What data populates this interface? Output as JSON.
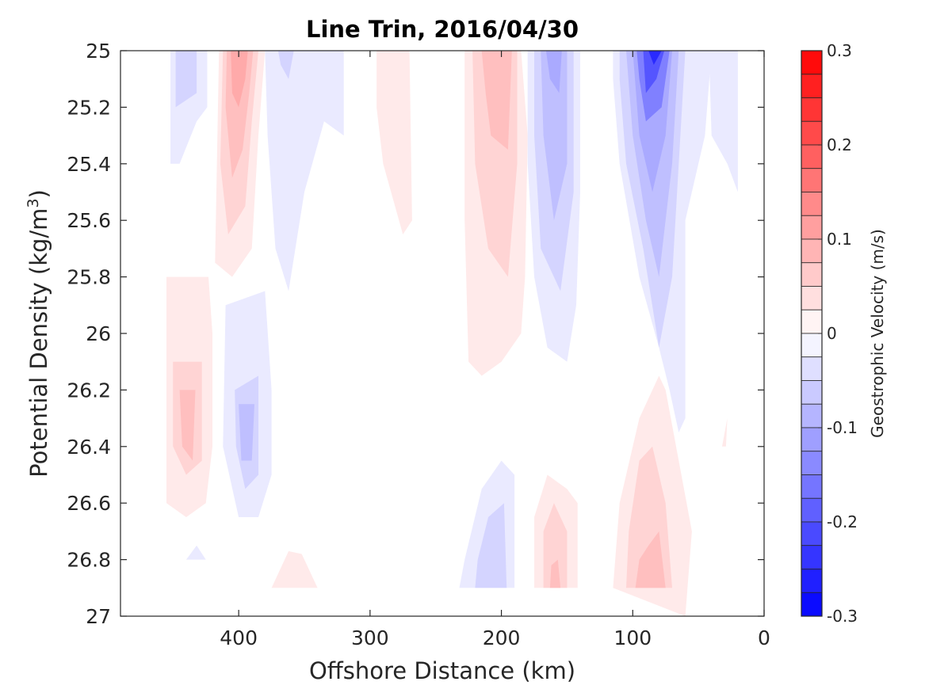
{
  "chart_data": {
    "type": "contour",
    "title": "Line Trin, 2016/04/30",
    "xlabel": "Offshore Distance (km)",
    "ylabel": "Potential Density (kg/m",
    "ylabel_sup": "3",
    "ylabel_close": ")",
    "xlim": [
      490,
      0
    ],
    "ylim": [
      25,
      27
    ],
    "x_ticks": [
      400,
      300,
      200,
      100,
      0
    ],
    "x_tick_labels": [
      "400",
      "300",
      "200",
      "100",
      "0"
    ],
    "y_ticks": [
      25,
      25.2,
      25.4,
      25.6,
      25.8,
      26,
      26.2,
      26.4,
      26.6,
      26.8,
      27
    ],
    "y_tick_labels": [
      "25",
      "25.2",
      "25.4",
      "25.6",
      "25.8",
      "26",
      "26.2",
      "26.4",
      "26.6",
      "26.8",
      "27"
    ],
    "colorbar": {
      "label": "Geostrophic Velocity (m/s)",
      "range": [
        -0.3,
        0.3
      ],
      "step": 0.025,
      "ticks": [
        0.3,
        0.2,
        0.1,
        0,
        -0.1,
        -0.2,
        -0.3
      ],
      "tick_labels": [
        "0.3",
        "0.2",
        "0.1",
        "0",
        "-0.1",
        "-0.2",
        "-0.3"
      ],
      "colormap": "blue-white-red",
      "neg_color": "#0000ff",
      "pos_color": "#ff0000"
    },
    "grid": false,
    "contour_regions": [
      {
        "feature": "blue jet near 440 km",
        "level": -0.025,
        "points": [
          [
            452,
            25
          ],
          [
            424,
            25
          ],
          [
            424,
            25.2
          ],
          [
            432,
            25.25
          ],
          [
            445,
            25.4
          ],
          [
            452,
            25.4
          ]
        ]
      },
      {
        "feature": "blue jet near 440 km",
        "level": -0.05,
        "points": [
          [
            448,
            25
          ],
          [
            432,
            25
          ],
          [
            432,
            25.15
          ],
          [
            448,
            25.2
          ]
        ]
      },
      {
        "feature": "red jet near 400 km",
        "level": 0.025,
        "points": [
          [
            415,
            25
          ],
          [
            380,
            25
          ],
          [
            385,
            25.3
          ],
          [
            390,
            25.7
          ],
          [
            405,
            25.8
          ],
          [
            418,
            25.75
          ]
        ]
      },
      {
        "feature": "red jet near 400 km",
        "level": 0.05,
        "points": [
          [
            412,
            25
          ],
          [
            385,
            25
          ],
          [
            390,
            25.25
          ],
          [
            395,
            25.55
          ],
          [
            408,
            25.65
          ],
          [
            414,
            25.4
          ]
        ]
      },
      {
        "feature": "red jet near 400 km",
        "level": 0.075,
        "points": [
          [
            409,
            25
          ],
          [
            389,
            25
          ],
          [
            392,
            25.15
          ],
          [
            397,
            25.35
          ],
          [
            405,
            25.45
          ],
          [
            410,
            25.2
          ]
        ]
      },
      {
        "feature": "red jet near 400 km",
        "level": 0.1,
        "points": [
          [
            406,
            25
          ],
          [
            393,
            25
          ],
          [
            395,
            25.1
          ],
          [
            400,
            25.2
          ],
          [
            405,
            25.15
          ]
        ]
      },
      {
        "feature": "blue band 330-380 km",
        "level": -0.025,
        "points": [
          [
            380,
            25
          ],
          [
            320,
            25
          ],
          [
            320,
            25.3
          ],
          [
            335,
            25.25
          ],
          [
            350,
            25.5
          ],
          [
            362,
            25.85
          ],
          [
            372,
            25.7
          ],
          [
            378,
            25.3
          ]
        ]
      },
      {
        "feature": "blue band 330-380 km",
        "level": -0.05,
        "points": [
          [
            370,
            25
          ],
          [
            358,
            25
          ],
          [
            362,
            25.1
          ],
          [
            368,
            25.05
          ]
        ]
      },
      {
        "feature": "red band near 280 km",
        "level": 0.025,
        "points": [
          [
            295,
            25
          ],
          [
            270,
            25
          ],
          [
            268,
            25.6
          ],
          [
            275,
            25.65
          ],
          [
            290,
            25.4
          ],
          [
            295,
            25.2
          ]
        ]
      },
      {
        "feature": "red jet near 200 km",
        "level": 0.025,
        "points": [
          [
            228,
            25
          ],
          [
            185,
            25
          ],
          [
            180,
            25.3
          ],
          [
            182,
            25.8
          ],
          [
            185,
            26
          ],
          [
            200,
            26.1
          ],
          [
            215,
            26.15
          ],
          [
            225,
            26.1
          ],
          [
            228,
            25.6
          ]
        ]
      },
      {
        "feature": "red jet near 200 km",
        "level": 0.05,
        "points": [
          [
            222,
            25
          ],
          [
            188,
            25
          ],
          [
            188,
            25.4
          ],
          [
            195,
            25.8
          ],
          [
            210,
            25.7
          ],
          [
            220,
            25.4
          ]
        ]
      },
      {
        "feature": "red jet near 200 km",
        "level": 0.075,
        "points": [
          [
            215,
            25
          ],
          [
            192,
            25
          ],
          [
            195,
            25.35
          ],
          [
            208,
            25.3
          ],
          [
            212,
            25.15
          ]
        ]
      },
      {
        "feature": "blue jet near 160 km",
        "level": -0.025,
        "points": [
          [
            180,
            25
          ],
          [
            140,
            25
          ],
          [
            140,
            25.5
          ],
          [
            143,
            25.9
          ],
          [
            150,
            26.1
          ],
          [
            165,
            26.05
          ],
          [
            175,
            25.8
          ],
          [
            180,
            25.4
          ]
        ]
      },
      {
        "feature": "blue jet near 160 km",
        "level": -0.05,
        "points": [
          [
            175,
            25
          ],
          [
            145,
            25
          ],
          [
            145,
            25.5
          ],
          [
            155,
            25.85
          ],
          [
            170,
            25.7
          ],
          [
            175,
            25.3
          ]
        ]
      },
      {
        "feature": "blue jet near 160 km",
        "level": -0.075,
        "points": [
          [
            170,
            25
          ],
          [
            150,
            25
          ],
          [
            150,
            25.4
          ],
          [
            160,
            25.6
          ],
          [
            168,
            25.3
          ]
        ]
      },
      {
        "feature": "blue jet near 160 km",
        "level": -0.1,
        "points": [
          [
            166,
            25
          ],
          [
            154,
            25
          ],
          [
            156,
            25.15
          ],
          [
            163,
            25.1
          ]
        ]
      },
      {
        "feature": "blue jet 70-115 km",
        "level": -0.025,
        "points": [
          [
            115,
            25
          ],
          [
            40,
            25
          ],
          [
            45,
            25.3
          ],
          [
            60,
            25.6
          ],
          [
            60,
            26.3
          ],
          [
            65,
            26.35
          ],
          [
            72,
            26.2
          ],
          [
            80,
            26.05
          ],
          [
            95,
            25.8
          ],
          [
            110,
            25.4
          ],
          [
            115,
            25.1
          ]
        ]
      },
      {
        "feature": "blue jet 70-115 km",
        "level": -0.05,
        "points": [
          [
            110,
            25
          ],
          [
            60,
            25
          ],
          [
            65,
            25.4
          ],
          [
            70,
            25.8
          ],
          [
            80,
            26.05
          ],
          [
            92,
            25.7
          ],
          [
            105,
            25.4
          ],
          [
            110,
            25.1
          ]
        ]
      },
      {
        "feature": "blue jet 70-115 km",
        "level": -0.075,
        "points": [
          [
            105,
            25
          ],
          [
            65,
            25
          ],
          [
            70,
            25.4
          ],
          [
            80,
            25.8
          ],
          [
            90,
            25.6
          ],
          [
            100,
            25.3
          ]
        ]
      },
      {
        "feature": "blue jet 70-115 km",
        "level": -0.1,
        "points": [
          [
            100,
            25
          ],
          [
            70,
            25
          ],
          [
            75,
            25.3
          ],
          [
            85,
            25.5
          ],
          [
            95,
            25.3
          ]
        ]
      },
      {
        "feature": "blue jet 70-115 km",
        "level": -0.15,
        "points": [
          [
            97,
            25
          ],
          [
            72,
            25
          ],
          [
            78,
            25.2
          ],
          [
            90,
            25.25
          ],
          [
            95,
            25.1
          ]
        ]
      },
      {
        "feature": "blue jet 70-115 km",
        "level": -0.2,
        "points": [
          [
            92,
            25
          ],
          [
            76,
            25
          ],
          [
            82,
            25.1
          ],
          [
            90,
            25.15
          ]
        ]
      },
      {
        "feature": "blue jet 70-115 km",
        "level": -0.25,
        "points": [
          [
            88,
            25
          ],
          [
            78,
            25
          ],
          [
            84,
            25.05
          ]
        ]
      },
      {
        "feature": "blue band near 40 km",
        "level": -0.025,
        "points": [
          [
            42,
            25
          ],
          [
            20,
            25
          ],
          [
            20,
            25.5
          ],
          [
            28,
            25.4
          ],
          [
            40,
            25.3
          ]
        ]
      },
      {
        "feature": "red lens near 440 km",
        "level": 0.025,
        "points": [
          [
            455,
            25.8
          ],
          [
            423,
            25.8
          ],
          [
            420,
            26
          ],
          [
            420,
            26.4
          ],
          [
            425,
            26.6
          ],
          [
            440,
            26.65
          ],
          [
            455,
            26.6
          ]
        ]
      },
      {
        "feature": "red lens near 440 km",
        "level": 0.05,
        "points": [
          [
            450,
            26.1
          ],
          [
            428,
            26.1
          ],
          [
            428,
            26.45
          ],
          [
            440,
            26.5
          ],
          [
            450,
            26.4
          ]
        ]
      },
      {
        "feature": "red lens near 440 km",
        "level": 0.075,
        "points": [
          [
            445,
            26.2
          ],
          [
            433,
            26.2
          ],
          [
            435,
            26.45
          ],
          [
            443,
            26.4
          ]
        ]
      },
      {
        "feature": "blue lens near 395 km",
        "level": -0.025,
        "points": [
          [
            410,
            25.9
          ],
          [
            380,
            25.85
          ],
          [
            375,
            26.2
          ],
          [
            375,
            26.5
          ],
          [
            385,
            26.65
          ],
          [
            400,
            26.65
          ],
          [
            412,
            26.4
          ]
        ]
      },
      {
        "feature": "blue lens near 395 km",
        "level": -0.05,
        "points": [
          [
            403,
            26.2
          ],
          [
            385,
            26.15
          ],
          [
            385,
            26.5
          ],
          [
            395,
            26.55
          ],
          [
            402,
            26.4
          ]
        ]
      },
      {
        "feature": "blue lens near 395 km",
        "level": -0.075,
        "points": [
          [
            400,
            26.25
          ],
          [
            388,
            26.25
          ],
          [
            390,
            26.45
          ],
          [
            398,
            26.45
          ]
        ]
      },
      {
        "feature": "blue patch 425-440 km",
        "level": -0.025,
        "points": [
          [
            440,
            26.8
          ],
          [
            425,
            26.8
          ],
          [
            432,
            26.75
          ]
        ]
      },
      {
        "feature": "red patch near 350 km",
        "level": 0.025,
        "points": [
          [
            375,
            26.9
          ],
          [
            340,
            26.9
          ],
          [
            352,
            26.78
          ],
          [
            362,
            26.77
          ]
        ]
      },
      {
        "feature": "blue lens near 210 km",
        "level": -0.025,
        "points": [
          [
            232,
            26.9
          ],
          [
            190,
            26.9
          ],
          [
            190,
            26.5
          ],
          [
            200,
            26.45
          ],
          [
            215,
            26.55
          ],
          [
            228,
            26.8
          ]
        ]
      },
      {
        "feature": "blue lens near 210 km",
        "level": -0.05,
        "points": [
          [
            220,
            26.9
          ],
          [
            196,
            26.9
          ],
          [
            198,
            26.6
          ],
          [
            210,
            26.65
          ],
          [
            218,
            26.8
          ]
        ]
      },
      {
        "feature": "red lens near 160 km",
        "level": 0.025,
        "points": [
          [
            175,
            26.9
          ],
          [
            142,
            26.9
          ],
          [
            142,
            26.6
          ],
          [
            150,
            26.55
          ],
          [
            165,
            26.5
          ],
          [
            175,
            26.65
          ]
        ]
      },
      {
        "feature": "red lens near 160 km",
        "level": 0.05,
        "points": [
          [
            168,
            26.9
          ],
          [
            150,
            26.9
          ],
          [
            150,
            26.7
          ],
          [
            160,
            26.6
          ],
          [
            168,
            26.7
          ]
        ]
      },
      {
        "feature": "red lens near 160 km",
        "level": 0.075,
        "points": [
          [
            163,
            26.9
          ],
          [
            155,
            26.9
          ],
          [
            157,
            26.8
          ],
          [
            162,
            26.82
          ]
        ]
      },
      {
        "feature": "red jet near 90 km",
        "level": 0.025,
        "points": [
          [
            115,
            26.9
          ],
          [
            60,
            27
          ],
          [
            55,
            26.7
          ],
          [
            75,
            26.2
          ],
          [
            80,
            26.15
          ],
          [
            95,
            26.3
          ],
          [
            110,
            26.6
          ]
        ]
      },
      {
        "feature": "red jet near 90 km",
        "level": 0.05,
        "points": [
          [
            105,
            26.9
          ],
          [
            70,
            26.9
          ],
          [
            75,
            26.6
          ],
          [
            85,
            26.4
          ],
          [
            95,
            26.45
          ],
          [
            103,
            26.7
          ]
        ]
      },
      {
        "feature": "red jet near 90 km",
        "level": 0.075,
        "points": [
          [
            98,
            26.9
          ],
          [
            75,
            26.9
          ],
          [
            80,
            26.7
          ],
          [
            88,
            26.75
          ],
          [
            95,
            26.8
          ]
        ]
      },
      {
        "feature": "red sliver near 30 km",
        "level": 0.025,
        "points": [
          [
            32,
            26.4
          ],
          [
            28,
            26.3
          ],
          [
            29,
            26.4
          ]
        ]
      }
    ]
  }
}
